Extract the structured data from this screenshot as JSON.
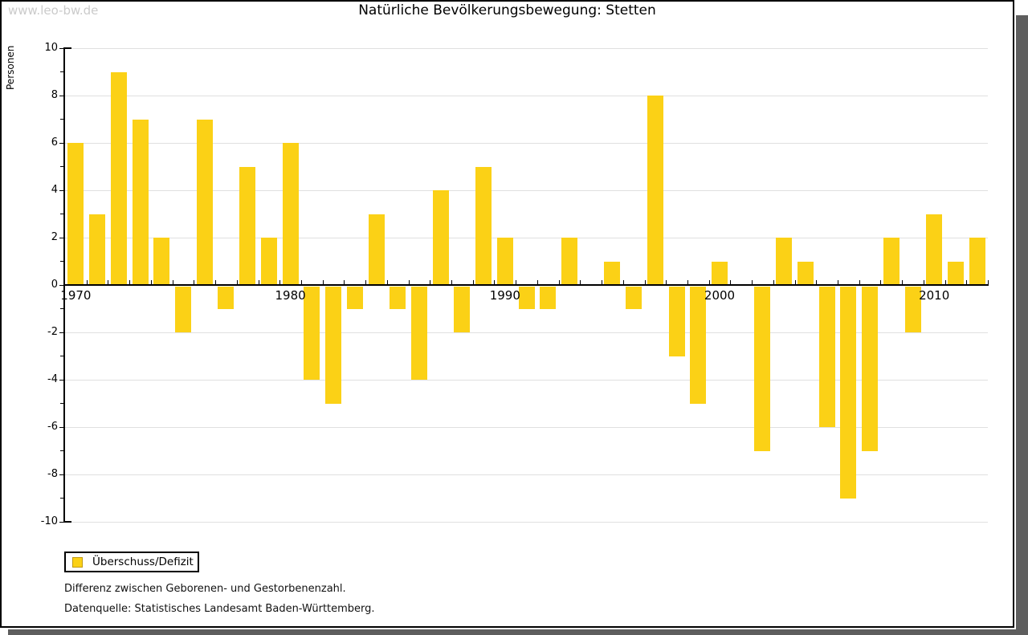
{
  "watermark": "www.leo-bw.de",
  "title": "Natürliche Bevölkerungsbewegung: Stetten",
  "legend": {
    "label": "Überschuss/Defizit",
    "swatch_color": "#FBD116",
    "swatch_border_color": "#C09A12"
  },
  "footnotes": [
    "Differenz zwischen Geborenen- und Gestorbenenzahl.",
    "Datenquelle: Statistisches Landesamt Baden-Württemberg."
  ],
  "colors": {
    "bar": "#FBD116",
    "gridline": "#E0E0E0",
    "axis": "#000000",
    "watermark": "#CBCBCB",
    "frame_shadow": "#5E5E5E"
  },
  "chart_data": {
    "type": "bar",
    "title": "Natürliche Bevölkerungsbewegung: Stetten",
    "xlabel": "",
    "ylabel": "Personen",
    "ylim": [
      -10,
      10
    ],
    "ytick_step": 2,
    "ytick_labels": [
      "10",
      "8",
      "6",
      "4",
      "2",
      "0",
      "-2",
      "-4",
      "-6",
      "-8",
      "-10"
    ],
    "xtick_decade_labels": [
      "1970",
      "1980",
      "1990",
      "2000",
      "2010"
    ],
    "grid": "horizontal gridlines at every 2 units",
    "legend_position": "bottom-left, boxed",
    "series_name": "Überschuss/Defizit",
    "bar_color": "#FBD116",
    "years": [
      1970,
      1971,
      1972,
      1973,
      1974,
      1975,
      1976,
      1977,
      1978,
      1979,
      1980,
      1981,
      1982,
      1983,
      1984,
      1985,
      1986,
      1987,
      1988,
      1989,
      1990,
      1991,
      1992,
      1993,
      1994,
      1995,
      1996,
      1997,
      1998,
      1999,
      2000,
      2001,
      2002,
      2003,
      2004,
      2005,
      2006,
      2007,
      2008,
      2009,
      2010,
      2011,
      2012
    ],
    "values": [
      6,
      3,
      9,
      7,
      2,
      -2,
      7,
      -1,
      5,
      2,
      6,
      -4,
      -5,
      -1,
      3,
      -1,
      -4,
      4,
      -2,
      5,
      2,
      -1,
      -1,
      2,
      0,
      1,
      -1,
      8,
      -3,
      -5,
      1,
      0,
      -7,
      2,
      1,
      -6,
      -9,
      -7,
      2,
      -2,
      3,
      1,
      2
    ]
  }
}
